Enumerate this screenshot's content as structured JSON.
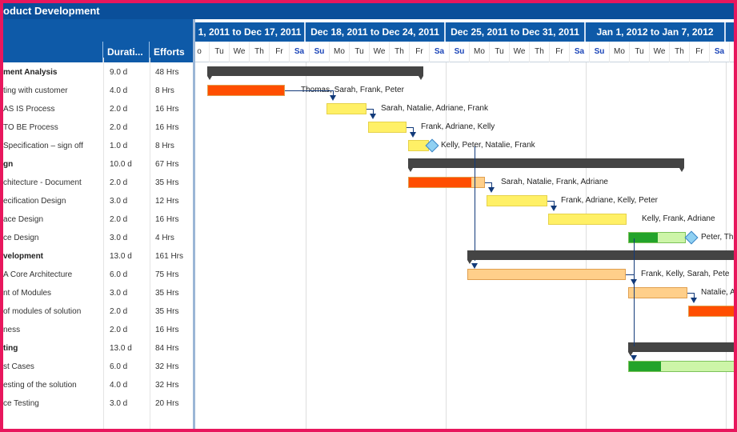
{
  "title": "oduct Development",
  "columns": {
    "name": "",
    "duration": "Durati...",
    "efforts": "Efforts"
  },
  "tasks": [
    {
      "name": "ment Analysis",
      "duration": "9.0 d",
      "efforts": "48 Hrs",
      "summary": true
    },
    {
      "name": "ting with customer",
      "duration": "4.0 d",
      "efforts": "8 Hrs"
    },
    {
      "name": "AS IS Process",
      "duration": "2.0 d",
      "efforts": "16 Hrs"
    },
    {
      "name": "TO BE Process",
      "duration": "2.0 d",
      "efforts": "16 Hrs"
    },
    {
      "name": "Specification – sign off",
      "duration": "1.0 d",
      "efforts": "8 Hrs"
    },
    {
      "name": "gn",
      "duration": "10.0 d",
      "efforts": "67 Hrs",
      "summary": true
    },
    {
      "name": "chitecture - Document",
      "duration": "2.0 d",
      "efforts": "35 Hrs"
    },
    {
      "name": "ecification Design",
      "duration": "3.0 d",
      "efforts": "12 Hrs"
    },
    {
      "name": "ace Design",
      "duration": "2.0 d",
      "efforts": "16 Hrs"
    },
    {
      "name": "ce Design",
      "duration": "3.0 d",
      "efforts": "4 Hrs"
    },
    {
      "name": "velopment",
      "duration": "13.0 d",
      "efforts": "161 Hrs",
      "summary": true
    },
    {
      "name": "A Core Architecture",
      "duration": "6.0 d",
      "efforts": "75 Hrs"
    },
    {
      "name": "nt of Modules",
      "duration": "3.0 d",
      "efforts": "35 Hrs"
    },
    {
      "name": "of modules of solution",
      "duration": "2.0 d",
      "efforts": "35 Hrs"
    },
    {
      "name": "ness",
      "duration": "2.0 d",
      "efforts": "16 Hrs"
    },
    {
      "name": "ting",
      "duration": "13.0 d",
      "efforts": "84 Hrs",
      "summary": true
    },
    {
      "name": "st Cases",
      "duration": "6.0 d",
      "efforts": "32 Hrs"
    },
    {
      "name": "esting of the solution",
      "duration": "4.0 d",
      "efforts": "32 Hrs"
    },
    {
      "name": "ce Testing",
      "duration": "3.0 d",
      "efforts": "20 Hrs"
    }
  ],
  "weeks": [
    "1, 2011 to Dec 17, 2011",
    "Dec 18, 2011 to Dec 24, 2011",
    "Dec 25, 2011 to Dec 31, 2011",
    "Jan 1, 2012 to Jan 7, 2012",
    "J"
  ],
  "days": [
    "o",
    "Tu",
    "We",
    "Th",
    "Fr",
    "Sa",
    "Su",
    "Mo",
    "Tu",
    "We",
    "Th",
    "Fr",
    "Sa",
    "Su",
    "Mo",
    "Tu",
    "We",
    "Th",
    "Fr",
    "Sa",
    "Su",
    "Mo",
    "Tu",
    "We",
    "Th",
    "Fr",
    "Sa",
    "Su",
    "M"
  ],
  "resources": [
    "Thomas, Sarah, Frank, Peter",
    "Sarah, Natalie, Adriane, Frank",
    "Frank, Adriane, Kelly",
    "Kelly, Peter, Natalie, Frank",
    "Sarah, Natalie, Frank, Adriane",
    "Frank, Adriane, Kelly, Peter",
    "Kelly, Frank, Adriane",
    "Peter, Th",
    "Frank, Kelly, Sarah, Pete",
    "Natalie, A"
  ],
  "colors": {
    "header": "#0e5aa8",
    "titlebar": "#0a4f9a",
    "critical": "#ff4e00",
    "yellow": "#fff066",
    "orange": "#ffcf8a",
    "green": "#23a32a",
    "lightgreen": "#cdf5a8",
    "summary": "#444444"
  }
}
